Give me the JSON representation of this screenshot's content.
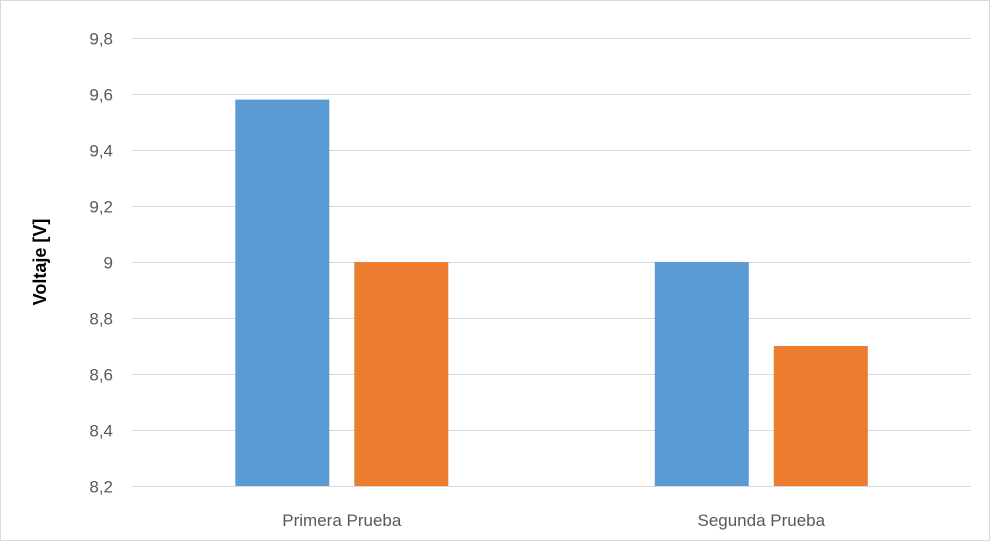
{
  "chart_data": {
    "type": "bar",
    "title": "",
    "xlabel": "",
    "ylabel": "Voltaje [V]",
    "categories": [
      "Primera Prueba",
      "Segunda Prueba"
    ],
    "series": [
      {
        "color": "#5b9bd5",
        "values": [
          9.58,
          9.0
        ]
      },
      {
        "color": "#ed7d31",
        "values": [
          9.0,
          8.7
        ]
      }
    ],
    "ylim": [
      8.2,
      9.8
    ],
    "yticks": [
      8.2,
      8.4,
      8.6,
      8.8,
      9.0,
      9.2,
      9.4,
      9.6,
      9.8
    ],
    "ytick_labels": [
      "8,2",
      "8,4",
      "8,6",
      "8,8",
      "9",
      "9,2",
      "9,4",
      "9,6",
      "9,8"
    ],
    "grid": true,
    "legend": "none"
  },
  "colors": {
    "grid": "#d9d9d9",
    "axis": "#d9d9d9"
  }
}
